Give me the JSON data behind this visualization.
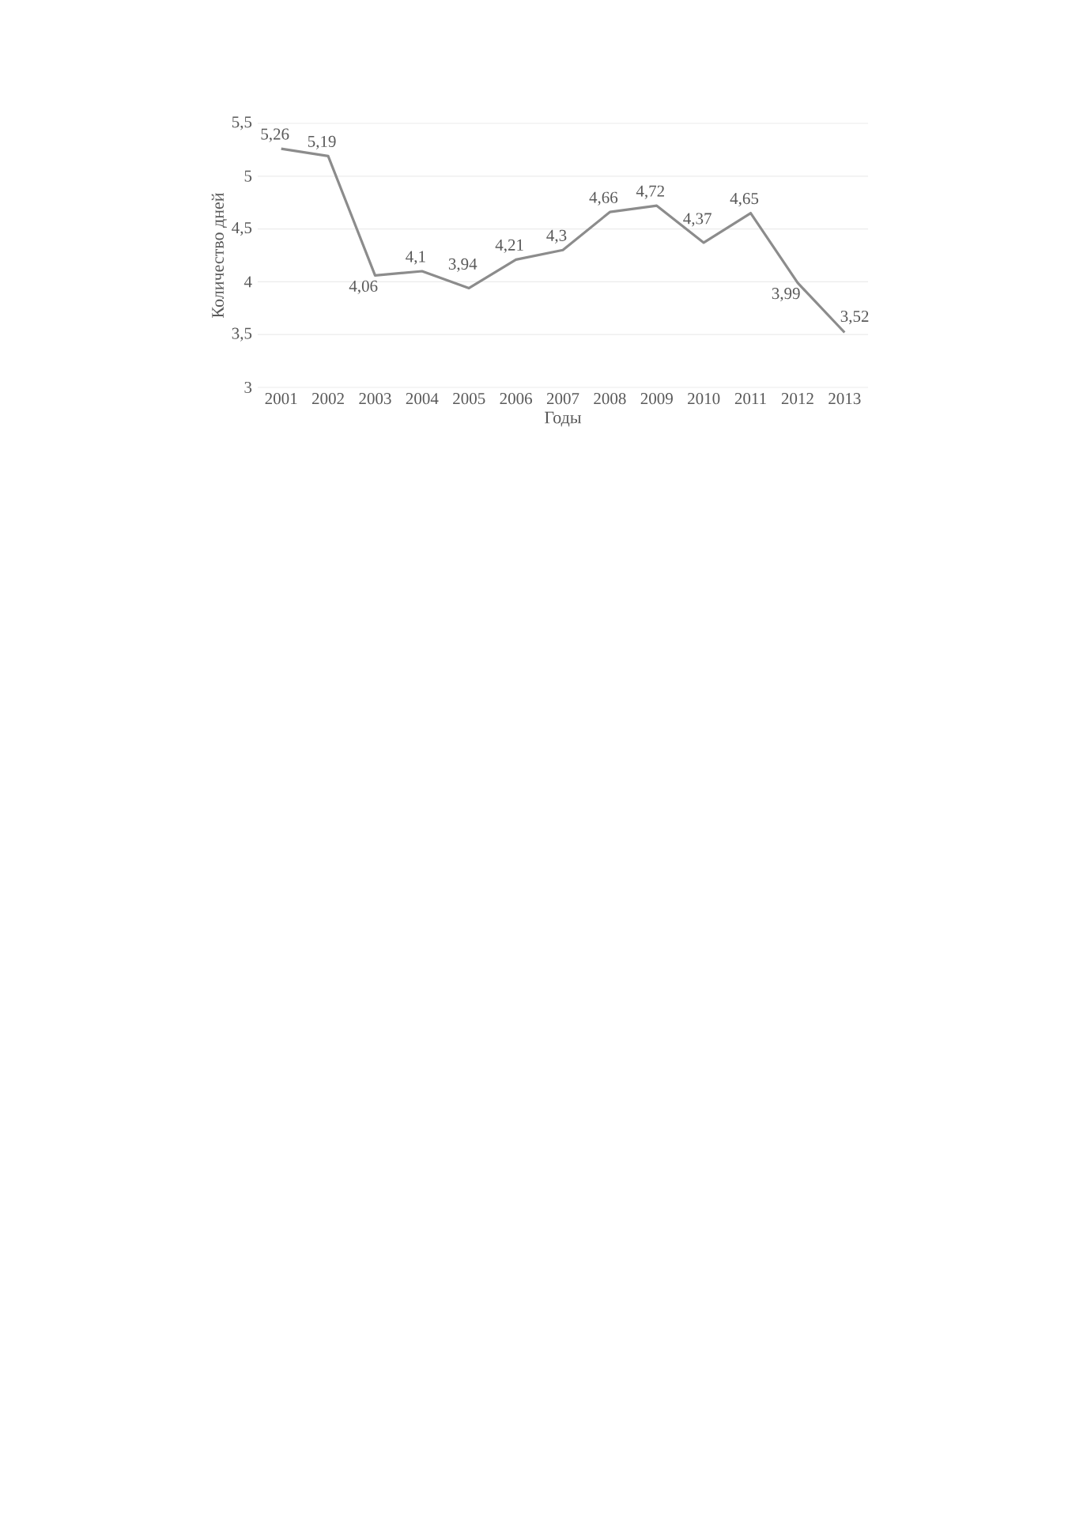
{
  "chart_data": {
    "type": "line",
    "xlabel": "Годы",
    "ylabel": "Количество дней",
    "categories": [
      "2001",
      "2002",
      "2003",
      "2004",
      "2005",
      "2006",
      "2007",
      "2008",
      "2009",
      "2010",
      "2011",
      "2012",
      "2013"
    ],
    "series": [
      {
        "color": "#8c8c8c",
        "values": [
          5.26,
          5.19,
          4.06,
          4.1,
          3.94,
          4.21,
          4.3,
          4.66,
          4.72,
          4.37,
          4.65,
          3.99,
          3.52
        ],
        "value_labels": [
          "5,26",
          "5,19",
          "4,06",
          "4,1",
          "3,94",
          "4,21",
          "4,3",
          "4,66",
          "4,72",
          "4,37",
          "4,65",
          "3,99",
          "3,52"
        ]
      }
    ],
    "ylim": [
      3,
      5.5
    ],
    "yticks": [
      {
        "value": 3,
        "label": "3"
      },
      {
        "value": 3.5,
        "label": "3,5"
      },
      {
        "value": 4,
        "label": "4"
      },
      {
        "value": 4.5,
        "label": "4,5"
      },
      {
        "value": 5,
        "label": "5"
      },
      {
        "value": 5.5,
        "label": "5,5"
      }
    ],
    "grid": "y",
    "marker": "none",
    "line_style": "solid"
  }
}
